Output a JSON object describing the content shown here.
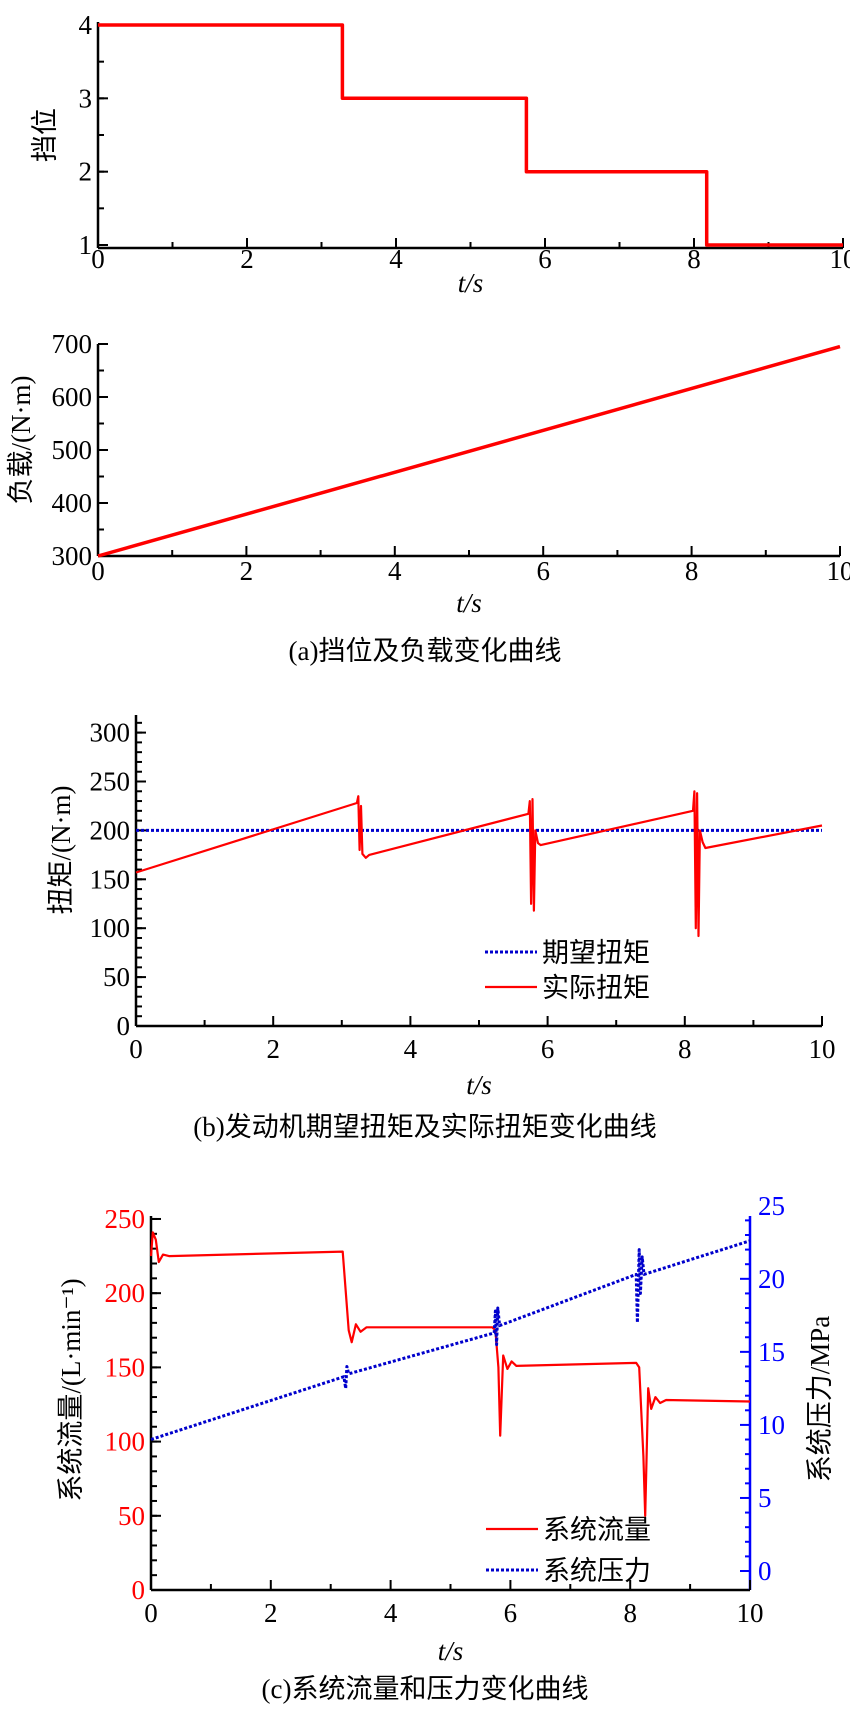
{
  "colors": {
    "red": "#ff0000",
    "blue": "#0000cc",
    "axis": "#000000",
    "left_axis_c": "#ff0000",
    "right_axis_c": "#0000ff"
  },
  "chart_data": [
    {
      "id": "gear",
      "type": "line",
      "xlabel": "t/s",
      "ylabel": "挡位",
      "xlim": [
        0,
        10
      ],
      "ylim": [
        1,
        4
      ],
      "xticks": [
        "0",
        "2",
        "4",
        "6",
        "8",
        "10"
      ],
      "yticks": [
        "1",
        "2",
        "3",
        "4"
      ],
      "series": [
        {
          "color": "#ff0000",
          "style": "solid",
          "step": true,
          "points": [
            [
              0,
              4
            ],
            [
              3.28,
              4
            ],
            [
              3.28,
              3
            ],
            [
              5.75,
              3
            ],
            [
              5.75,
              2
            ],
            [
              8.17,
              2
            ],
            [
              8.17,
              1
            ],
            [
              10,
              1
            ]
          ]
        }
      ]
    },
    {
      "id": "load",
      "type": "line",
      "xlabel": "t/s",
      "ylabel": "负载/(N·m)",
      "xlim": [
        0,
        10
      ],
      "ylim": [
        300,
        700
      ],
      "xticks": [
        "0",
        "2",
        "4",
        "6",
        "8",
        "10"
      ],
      "yticks": [
        "300",
        "400",
        "500",
        "600",
        "700"
      ],
      "caption": "(a)挡位及负载变化曲线",
      "series": [
        {
          "color": "#ff0000",
          "style": "solid",
          "points": [
            [
              0,
              300
            ],
            [
              10,
              695
            ]
          ]
        }
      ]
    },
    {
      "id": "torque",
      "type": "line",
      "xlabel": "t/s",
      "ylabel": "扭矩/(N·m)",
      "xlim": [
        0,
        10
      ],
      "ylim": [
        0,
        318
      ],
      "xticks": [
        "0",
        "2",
        "4",
        "6",
        "8",
        "10"
      ],
      "yticks": [
        "0",
        "50",
        "100",
        "150",
        "200",
        "250",
        "300"
      ],
      "caption": "(b)发动机期望扭矩及实际扭矩变化曲线",
      "legend": "bottom-center",
      "series": [
        {
          "name": "期望扭矩",
          "color": "#0000cc",
          "style": "dotted",
          "points": [
            [
              0,
              200
            ],
            [
              10,
              200
            ]
          ]
        },
        {
          "name": "实际扭矩",
          "color": "#ff0000",
          "style": "solid",
          "points": [
            [
              0,
              157
            ],
            [
              3.22,
              228
            ],
            [
              3.24,
              235
            ],
            [
              3.26,
              180
            ],
            [
              3.28,
              225
            ],
            [
              3.3,
              176
            ],
            [
              3.35,
              172
            ],
            [
              3.4,
              175
            ],
            [
              5.72,
              217
            ],
            [
              5.74,
              230
            ],
            [
              5.76,
              125
            ],
            [
              5.78,
              232
            ],
            [
              5.8,
              118
            ],
            [
              5.82,
              200
            ],
            [
              5.86,
              187
            ],
            [
              5.9,
              185
            ],
            [
              8.12,
              220
            ],
            [
              8.14,
              240
            ],
            [
              8.16,
              100
            ],
            [
              8.18,
              238
            ],
            [
              8.2,
              92
            ],
            [
              8.22,
              200
            ],
            [
              8.26,
              188
            ],
            [
              8.3,
              182
            ],
            [
              10,
              205
            ]
          ]
        }
      ]
    },
    {
      "id": "flow-pressure",
      "type": "line",
      "xlabel": "t/s",
      "ylabel": "系统流量/(L·min⁻¹)",
      "ylabel_right": "系统压力/MPa",
      "xlim": [
        0,
        10
      ],
      "ylim": [
        0,
        252
      ],
      "ylim_right": [
        -1.3,
        24.3
      ],
      "xticks": [
        "0",
        "2",
        "4",
        "6",
        "8",
        "10"
      ],
      "yticks": [
        "0",
        "50",
        "100",
        "150",
        "200",
        "250"
      ],
      "yticks_right": [
        "0",
        "5",
        "10",
        "15",
        "20",
        "25"
      ],
      "caption": "(c)系统流量和压力变化曲线",
      "legend": "bottom-center",
      "series": [
        {
          "name": "系统流量",
          "axis": "left",
          "color": "#ff0000",
          "style": "solid",
          "points": [
            [
              0,
              225
            ],
            [
              0.03,
              241
            ],
            [
              0.08,
              236
            ],
            [
              0.13,
              221
            ],
            [
              0.2,
              226
            ],
            [
              0.3,
              225
            ],
            [
              3.2,
              228
            ],
            [
              3.3,
              175
            ],
            [
              3.35,
              167
            ],
            [
              3.42,
              179
            ],
            [
              3.5,
              174
            ],
            [
              3.6,
              177
            ],
            [
              5.7,
              177
            ],
            [
              5.75,
              175
            ],
            [
              5.8,
              150
            ],
            [
              5.83,
              104
            ],
            [
              5.88,
              158
            ],
            [
              5.95,
              149
            ],
            [
              6.02,
              154
            ],
            [
              6.1,
              151
            ],
            [
              8.1,
              153
            ],
            [
              8.15,
              150
            ],
            [
              8.22,
              90
            ],
            [
              8.25,
              50
            ],
            [
              8.3,
              136
            ],
            [
              8.35,
              122
            ],
            [
              8.42,
              130
            ],
            [
              8.5,
              126
            ],
            [
              8.6,
              128
            ],
            [
              10,
              127
            ]
          ]
        },
        {
          "name": "系统压力",
          "axis": "right",
          "color": "#0000cc",
          "style": "dotted",
          "points": [
            [
              0,
              9
            ],
            [
              3.22,
              13.3
            ],
            [
              3.25,
              12.5
            ],
            [
              3.27,
              14
            ],
            [
              3.3,
              13.5
            ],
            [
              5.73,
              16.3
            ],
            [
              5.75,
              17.8
            ],
            [
              5.77,
              15.5
            ],
            [
              5.79,
              18
            ],
            [
              5.82,
              16.8
            ],
            [
              8.1,
              20.3
            ],
            [
              8.12,
              17
            ],
            [
              8.15,
              22
            ],
            [
              8.17,
              19
            ],
            [
              8.2,
              21.5
            ],
            [
              8.23,
              20.3
            ],
            [
              10,
              22.6
            ]
          ]
        }
      ]
    }
  ]
}
